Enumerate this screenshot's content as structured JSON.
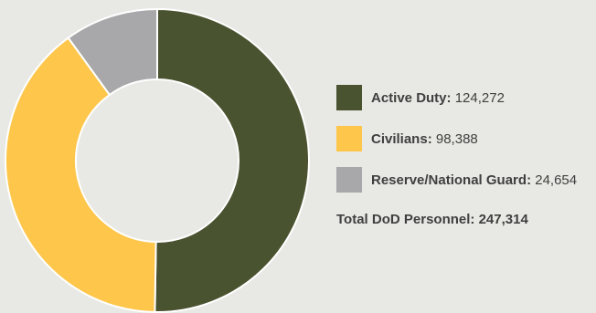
{
  "chart_data": {
    "type": "pie",
    "donut": true,
    "slices": [
      {
        "label": "Active Duty",
        "value": 124272,
        "value_text": "124,272",
        "color": "#4a5330"
      },
      {
        "label": "Civilians",
        "value": 98388,
        "value_text": "98,388",
        "color": "#fec64a"
      },
      {
        "label": "Reserve/National Guard",
        "value": 24654,
        "value_text": "24,654",
        "color": "#a8a8aa"
      }
    ],
    "total_label": "Total DoD Personnel:",
    "total_value": "247,314",
    "legend_position": "right",
    "background": "#e8e8e4"
  }
}
